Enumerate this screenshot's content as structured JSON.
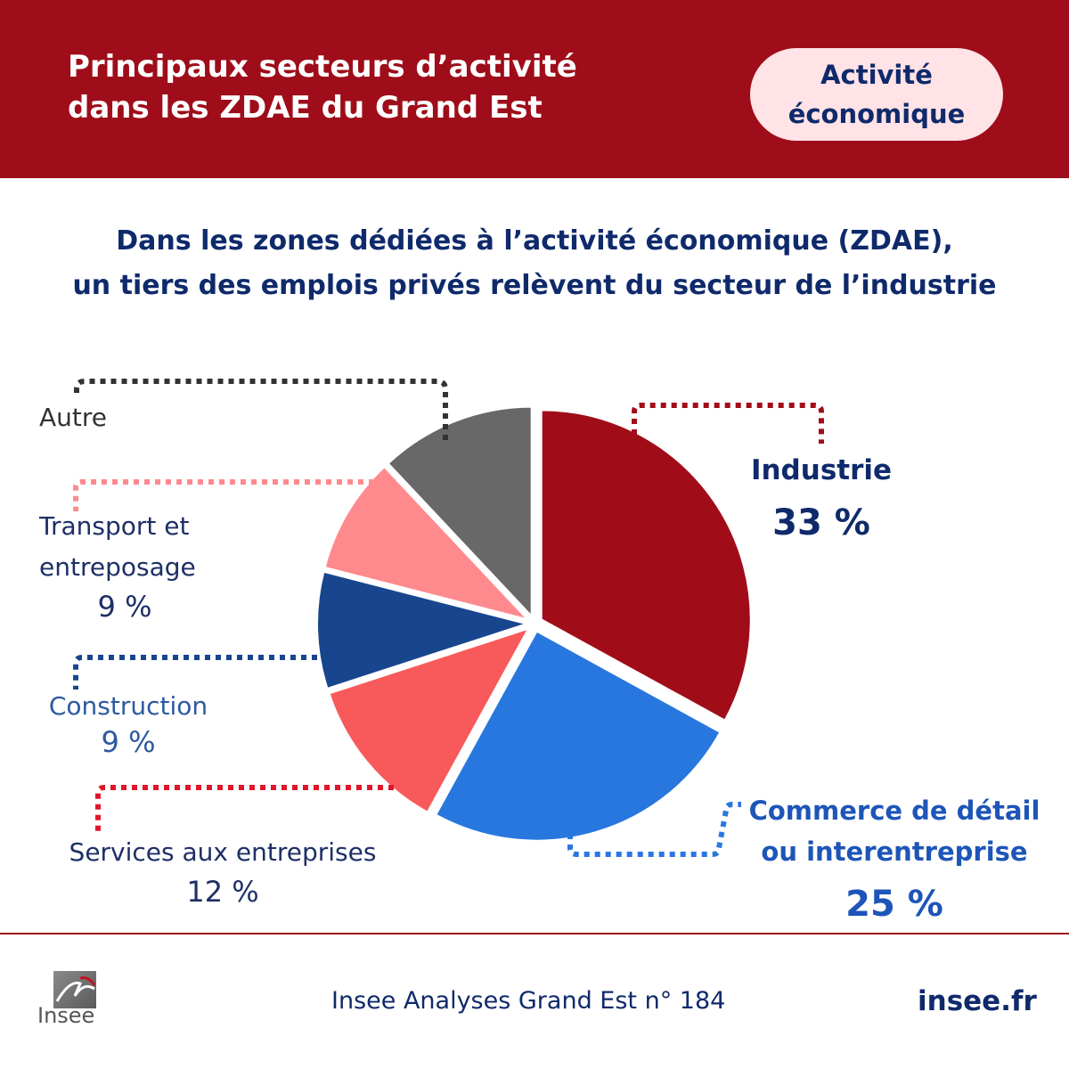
{
  "header": {
    "title_line1": "Principaux secteurs d’activité",
    "title_line2": "dans les ZDAE du Grand Est",
    "badge_line1": "Activité",
    "badge_line2": "économique"
  },
  "headline": {
    "line1": "Dans les zones dédiées à l’activité économique (ZDAE),",
    "line2": "un tiers des emplois privés relèvent du secteur de l’industrie"
  },
  "chart_data": {
    "type": "pie",
    "title": "Dans les zones dédiées à l’activité économique (ZDAE), un tiers des emplois privés relèvent du secteur de l’industrie",
    "unit": "%",
    "slices": [
      {
        "id": "industrie",
        "label_lines": [
          "Industrie"
        ],
        "value": 33,
        "value_label": "33 %",
        "color": "#a00d19",
        "label_color": "#0f2a6b"
      },
      {
        "id": "commerce",
        "label_lines": [
          "Commerce de détail",
          "ou interentreprise"
        ],
        "value": 25,
        "value_label": "25 %",
        "color": "#2877df",
        "label_color": "#1d55b8"
      },
      {
        "id": "services",
        "label_lines": [
          "Services aux entreprises"
        ],
        "value": 12,
        "value_label": "12 %",
        "color": "#f85a5b",
        "label_color": "#1e2f66"
      },
      {
        "id": "construction",
        "label_lines": [
          "Construction"
        ],
        "value": 9,
        "value_label": "9 %",
        "color": "#18468e",
        "label_color": "#2c5aa0"
      },
      {
        "id": "transport",
        "label_lines": [
          "Transport et",
          "entreposage"
        ],
        "value": 9,
        "value_label": "9 %",
        "color": "#ff8a8e",
        "label_color": "#1e2f66"
      },
      {
        "id": "autre",
        "label_lines": [
          "Autre"
        ],
        "value": 12,
        "value_label": "",
        "color": "#686868",
        "label_color": "#333333"
      }
    ]
  },
  "footer": {
    "source": "Insee Analyses Grand Est n° 184",
    "site": "insee.fr",
    "logo_text": "Insee"
  }
}
